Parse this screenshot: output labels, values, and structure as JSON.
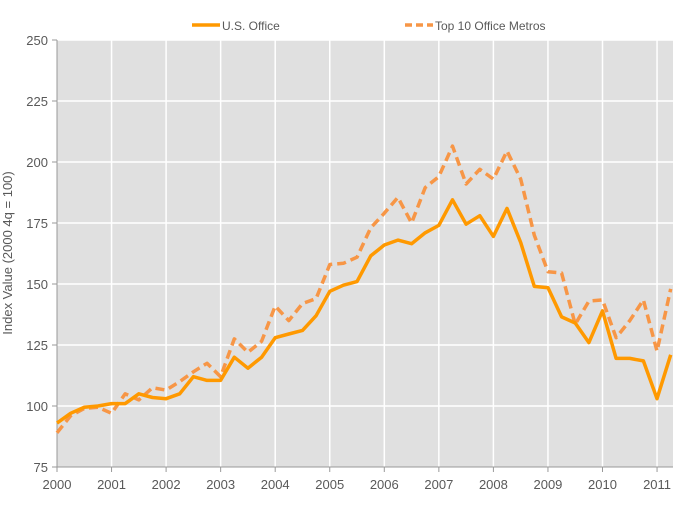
{
  "chart_data": {
    "type": "line",
    "title": "",
    "xlabel": "",
    "ylabel": "Index Value (2000 4q = 100)",
    "xlim": [
      2000,
      2011.3
    ],
    "ylim": [
      75,
      250
    ],
    "yticks": [
      75,
      100,
      125,
      150,
      175,
      200,
      225,
      250
    ],
    "xticks": [
      2000,
      2001,
      2002,
      2003,
      2004,
      2005,
      2006,
      2007,
      2008,
      2009,
      2010,
      2011
    ],
    "x_start": 2000,
    "x_step": 0.25,
    "grid": true,
    "legend_position": "top-center",
    "series": [
      {
        "name": "U.S. Office",
        "style": "solid",
        "color": "#FF9900",
        "values": [
          93,
          97,
          99.5,
          100,
          101,
          101,
          105,
          103.5,
          103,
          105,
          112,
          110.5,
          110.5,
          120,
          115.5,
          120,
          128,
          129.5,
          131,
          137,
          147,
          149.5,
          151,
          161.5,
          166,
          168,
          166.5,
          171,
          174,
          184.5,
          174.5,
          178,
          169.5,
          181,
          167,
          149,
          148.5,
          136.5,
          134,
          126,
          139,
          119.5,
          119.5,
          118.5,
          103,
          121
        ]
      },
      {
        "name": "Top 10 Office Metros",
        "style": "dashed",
        "color": "#F79646",
        "values": [
          89,
          96,
          99,
          99.5,
          97,
          105,
          102.5,
          107.5,
          106.5,
          110,
          114,
          117.5,
          112,
          127.5,
          122,
          126.5,
          141,
          135,
          142,
          144,
          158,
          158.5,
          161,
          173,
          179,
          185.5,
          175,
          189.5,
          194,
          206.5,
          191,
          197,
          193,
          204.5,
          193,
          170,
          155,
          154.5,
          133.5,
          143,
          143.5,
          128,
          135,
          143.5,
          122.5,
          148
        ]
      }
    ]
  }
}
